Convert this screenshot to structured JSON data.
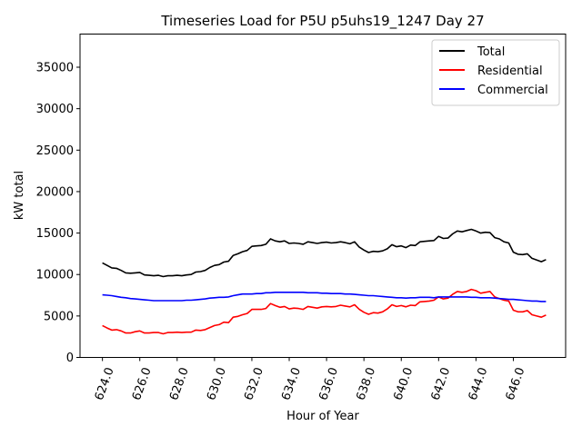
{
  "chart_data": {
    "type": "line",
    "title": "Timeseries Load for P5U p5uhs19_1247  Day 27",
    "xlabel": "Hour of Year",
    "ylabel": "kW total",
    "xlim": [
      622.8,
      648.8
    ],
    "ylim": [
      0,
      39000
    ],
    "xticks": [
      624,
      626,
      628,
      630,
      632,
      634,
      636,
      638,
      640,
      642,
      644,
      646
    ],
    "xtick_labels": [
      "624.0",
      "626.0",
      "628.0",
      "630.0",
      "632.0",
      "634.0",
      "636.0",
      "638.0",
      "640.0",
      "642.0",
      "644.0",
      "646.0"
    ],
    "yticks": [
      0,
      5000,
      10000,
      15000,
      20000,
      25000,
      30000,
      35000
    ],
    "ytick_labels": [
      "0",
      "5000",
      "10000",
      "15000",
      "20000",
      "25000",
      "30000",
      "35000"
    ],
    "legend_position": "top-right",
    "grid": false,
    "x": [
      624.0,
      624.25,
      624.5,
      624.75,
      625.0,
      625.25,
      625.5,
      625.75,
      626.0,
      626.25,
      626.5,
      626.75,
      627.0,
      627.25,
      627.5,
      627.75,
      628.0,
      628.25,
      628.5,
      628.75,
      629.0,
      629.25,
      629.5,
      629.75,
      630.0,
      630.25,
      630.5,
      630.75,
      631.0,
      631.25,
      631.5,
      631.75,
      632.0,
      632.25,
      632.5,
      632.75,
      633.0,
      633.25,
      633.5,
      633.75,
      634.0,
      634.25,
      634.5,
      634.75,
      635.0,
      635.25,
      635.5,
      635.75,
      636.0,
      636.25,
      636.5,
      636.75,
      637.0,
      637.25,
      637.5,
      637.75,
      638.0,
      638.25,
      638.5,
      638.75,
      639.0,
      639.25,
      639.5,
      639.75,
      640.0,
      640.25,
      640.5,
      640.75,
      641.0,
      641.25,
      641.5,
      641.75,
      642.0,
      642.25,
      642.5,
      642.75,
      643.0,
      643.25,
      643.5,
      643.75,
      644.0,
      644.25,
      644.5,
      644.75,
      645.0,
      645.25,
      645.5,
      645.75,
      646.0,
      646.25,
      646.5,
      646.75,
      647.0,
      647.25,
      647.5,
      647.75
    ],
    "series": [
      {
        "name": "Total",
        "color": "#000000",
        "values": [
          11400,
          11100,
          10800,
          10750,
          10500,
          10200,
          10150,
          10200,
          10250,
          9950,
          9900,
          9850,
          9900,
          9750,
          9850,
          9850,
          9900,
          9850,
          9950,
          10000,
          10300,
          10350,
          10500,
          10850,
          11100,
          11200,
          11500,
          11600,
          12300,
          12500,
          12750,
          12900,
          13400,
          13450,
          13500,
          13650,
          14300,
          14050,
          13950,
          14050,
          13750,
          13800,
          13750,
          13650,
          13950,
          13850,
          13750,
          13850,
          13900,
          13800,
          13850,
          13950,
          13850,
          13700,
          13950,
          13300,
          12950,
          12650,
          12800,
          12750,
          12850,
          13100,
          13600,
          13350,
          13450,
          13250,
          13550,
          13500,
          13950,
          14000,
          14050,
          14100,
          14600,
          14350,
          14400,
          14900,
          15250,
          15150,
          15300,
          15450,
          15250,
          15000,
          15100,
          15050,
          14450,
          14300,
          13950,
          13800,
          12700,
          12450,
          12400,
          12500,
          11950,
          11750,
          11550,
          11800
        ]
      },
      {
        "name": "Residential",
        "color": "#ff0000",
        "values": [
          3850,
          3550,
          3300,
          3350,
          3200,
          2950,
          2950,
          3100,
          3200,
          2950,
          2950,
          3000,
          3000,
          2850,
          3000,
          3000,
          3050,
          3000,
          3050,
          3050,
          3300,
          3250,
          3350,
          3600,
          3850,
          3950,
          4250,
          4200,
          4850,
          4950,
          5150,
          5300,
          5800,
          5800,
          5800,
          5900,
          6500,
          6250,
          6050,
          6150,
          5850,
          5950,
          5900,
          5800,
          6150,
          6050,
          5950,
          6100,
          6150,
          6100,
          6150,
          6300,
          6200,
          6100,
          6350,
          5800,
          5450,
          5200,
          5400,
          5350,
          5500,
          5850,
          6350,
          6150,
          6250,
          6100,
          6300,
          6250,
          6700,
          6750,
          6800,
          6900,
          7300,
          7050,
          7150,
          7600,
          7950,
          7850,
          7950,
          8200,
          8050,
          7750,
          7850,
          7950,
          7300,
          7100,
          6900,
          6800,
          5700,
          5500,
          5500,
          5650,
          5150,
          5000,
          4850,
          5100
        ]
      },
      {
        "name": "Commercial",
        "color": "#0000ff",
        "values": [
          7550,
          7500,
          7450,
          7350,
          7250,
          7200,
          7100,
          7050,
          7000,
          6950,
          6900,
          6850,
          6850,
          6850,
          6850,
          6850,
          6850,
          6850,
          6900,
          6900,
          6950,
          7000,
          7050,
          7150,
          7200,
          7250,
          7250,
          7300,
          7450,
          7550,
          7650,
          7650,
          7650,
          7700,
          7700,
          7800,
          7800,
          7850,
          7850,
          7850,
          7850,
          7850,
          7850,
          7850,
          7800,
          7800,
          7800,
          7750,
          7750,
          7700,
          7700,
          7700,
          7650,
          7650,
          7600,
          7550,
          7500,
          7450,
          7450,
          7400,
          7350,
          7300,
          7250,
          7200,
          7200,
          7150,
          7200,
          7200,
          7250,
          7250,
          7250,
          7200,
          7300,
          7300,
          7300,
          7300,
          7300,
          7300,
          7300,
          7250,
          7250,
          7200,
          7200,
          7200,
          7150,
          7100,
          7050,
          7000,
          7000,
          6950,
          6900,
          6850,
          6800,
          6800,
          6750,
          6750
        ]
      }
    ]
  }
}
